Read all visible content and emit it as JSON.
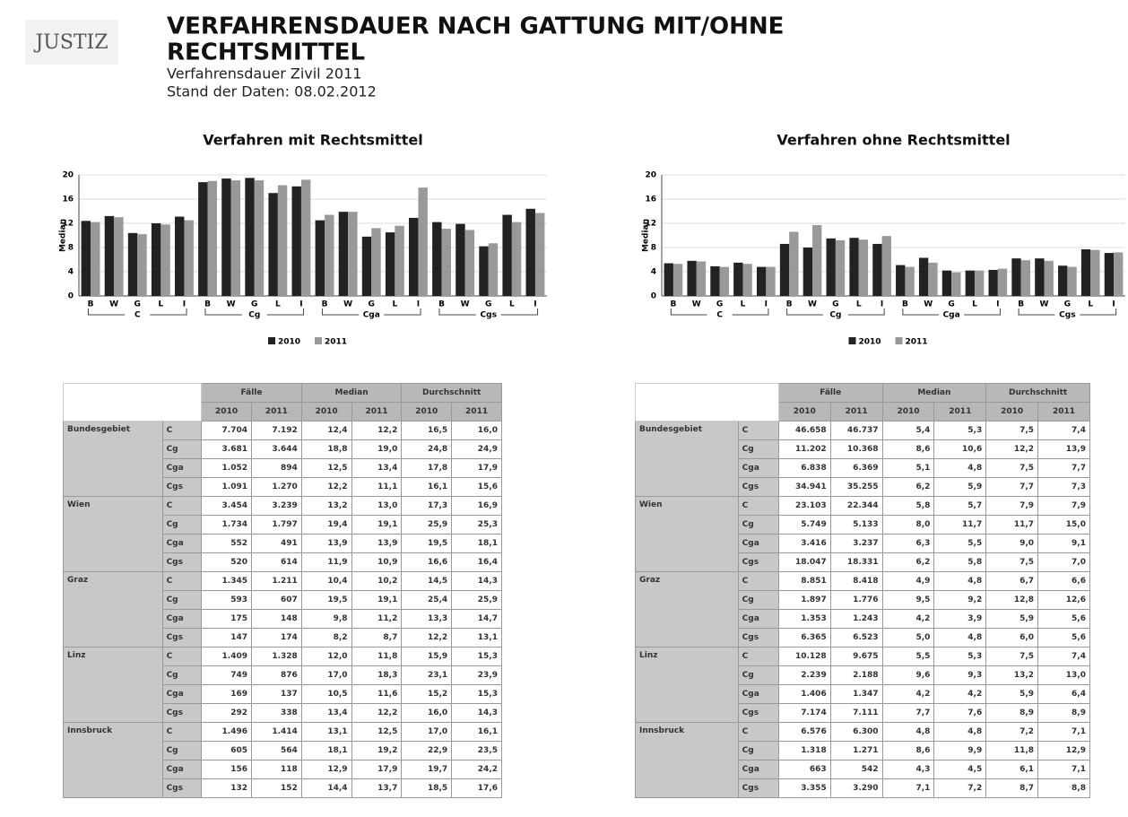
{
  "header": {
    "logo": "JUSTIZ",
    "title_line1": "VERFAHRENSDAUER NACH GATTUNG MIT/OHNE",
    "title_line2": "RECHTSMITTEL",
    "subtitle1": "Verfahrensdauer Zivil 2011",
    "subtitle2": "Stand der Daten: 08.02.2012"
  },
  "chart_data": [
    {
      "type": "bar",
      "title": "Verfahren mit Rechtsmittel",
      "y_label": "Median",
      "categories": [
        "B",
        "W",
        "G",
        "L",
        "I",
        "B",
        "W",
        "G",
        "L",
        "I",
        "B",
        "W",
        "G",
        "L",
        "I",
        "B",
        "W",
        "G",
        "L",
        "I"
      ],
      "groups": [
        "C",
        "Cg",
        "Cga",
        "Cgs"
      ],
      "series": [
        {
          "name": "2010",
          "color": "#222222",
          "values": [
            12.4,
            13.2,
            10.4,
            12.0,
            13.1,
            18.8,
            19.4,
            19.5,
            17.0,
            18.1,
            12.5,
            13.9,
            9.8,
            10.5,
            12.9,
            12.2,
            11.9,
            8.2,
            13.4,
            14.4
          ]
        },
        {
          "name": "2011",
          "color": "#999999",
          "values": [
            12.2,
            13.0,
            10.2,
            11.8,
            12.5,
            19.0,
            19.1,
            19.1,
            18.3,
            19.2,
            13.4,
            13.9,
            11.2,
            11.6,
            17.9,
            11.1,
            10.9,
            8.7,
            12.2,
            13.7
          ]
        }
      ],
      "ylim": [
        0,
        20
      ],
      "yticks": [
        0,
        4,
        8,
        12,
        16,
        20
      ],
      "grid": true
    },
    {
      "type": "bar",
      "title": "Verfahren ohne Rechtsmittel",
      "y_label": "Median",
      "categories": [
        "B",
        "W",
        "G",
        "L",
        "I",
        "B",
        "W",
        "G",
        "L",
        "I",
        "B",
        "W",
        "G",
        "L",
        "I",
        "B",
        "W",
        "G",
        "L",
        "I"
      ],
      "groups": [
        "C",
        "Cg",
        "Cga",
        "Cgs"
      ],
      "series": [
        {
          "name": "2010",
          "color": "#222222",
          "values": [
            5.4,
            5.8,
            4.9,
            5.5,
            4.8,
            8.6,
            8.0,
            9.5,
            9.6,
            8.6,
            5.1,
            6.3,
            4.2,
            4.2,
            4.3,
            6.2,
            6.2,
            5.0,
            7.7,
            7.1
          ]
        },
        {
          "name": "2011",
          "color": "#999999",
          "values": [
            5.3,
            5.7,
            4.8,
            5.3,
            4.8,
            10.6,
            11.7,
            9.2,
            9.3,
            9.9,
            4.8,
            5.5,
            3.9,
            4.2,
            4.5,
            5.9,
            5.8,
            4.8,
            7.6,
            7.2
          ]
        }
      ],
      "ylim": [
        0,
        20
      ],
      "yticks": [
        0,
        4,
        8,
        12,
        16,
        20
      ],
      "grid": true
    }
  ],
  "tables": [
    {
      "columns": [
        "Fälle",
        "Median",
        "Durchschnitt"
      ],
      "years": [
        "2010",
        "2011"
      ],
      "groups": [
        {
          "name": "Bundesgebiet",
          "rows": [
            [
              "C",
              "7.704",
              "7.192",
              "12,4",
              "12,2",
              "16,5",
              "16,0"
            ],
            [
              "Cg",
              "3.681",
              "3.644",
              "18,8",
              "19,0",
              "24,8",
              "24,9"
            ],
            [
              "Cga",
              "1.052",
              "894",
              "12,5",
              "13,4",
              "17,8",
              "17,9"
            ],
            [
              "Cgs",
              "1.091",
              "1.270",
              "12,2",
              "11,1",
              "16,1",
              "15,6"
            ]
          ]
        },
        {
          "name": "Wien",
          "rows": [
            [
              "C",
              "3.454",
              "3.239",
              "13,2",
              "13,0",
              "17,3",
              "16,9"
            ],
            [
              "Cg",
              "1.734",
              "1.797",
              "19,4",
              "19,1",
              "25,9",
              "25,3"
            ],
            [
              "Cga",
              "552",
              "491",
              "13,9",
              "13,9",
              "19,5",
              "18,1"
            ],
            [
              "Cgs",
              "520",
              "614",
              "11,9",
              "10,9",
              "16,6",
              "16,4"
            ]
          ]
        },
        {
          "name": "Graz",
          "rows": [
            [
              "C",
              "1.345",
              "1.211",
              "10,4",
              "10,2",
              "14,5",
              "14,3"
            ],
            [
              "Cg",
              "593",
              "607",
              "19,5",
              "19,1",
              "25,4",
              "25,9"
            ],
            [
              "Cga",
              "175",
              "148",
              "9,8",
              "11,2",
              "13,3",
              "14,7"
            ],
            [
              "Cgs",
              "147",
              "174",
              "8,2",
              "8,7",
              "12,2",
              "13,1"
            ]
          ]
        },
        {
          "name": "Linz",
          "rows": [
            [
              "C",
              "1.409",
              "1.328",
              "12,0",
              "11,8",
              "15,9",
              "15,3"
            ],
            [
              "Cg",
              "749",
              "876",
              "17,0",
              "18,3",
              "23,1",
              "23,9"
            ],
            [
              "Cga",
              "169",
              "137",
              "10,5",
              "11,6",
              "15,2",
              "15,3"
            ],
            [
              "Cgs",
              "292",
              "338",
              "13,4",
              "12,2",
              "16,0",
              "14,3"
            ]
          ]
        },
        {
          "name": "Innsbruck",
          "rows": [
            [
              "C",
              "1.496",
              "1.414",
              "13,1",
              "12,5",
              "17,0",
              "16,1"
            ],
            [
              "Cg",
              "605",
              "564",
              "18,1",
              "19,2",
              "22,9",
              "23,5"
            ],
            [
              "Cga",
              "156",
              "118",
              "12,9",
              "17,9",
              "19,7",
              "24,2"
            ],
            [
              "Cgs",
              "132",
              "152",
              "14,4",
              "13,7",
              "18,5",
              "17,6"
            ]
          ]
        }
      ]
    },
    {
      "columns": [
        "Fälle",
        "Median",
        "Durchschnitt"
      ],
      "years": [
        "2010",
        "2011"
      ],
      "groups": [
        {
          "name": "Bundesgebiet",
          "rows": [
            [
              "C",
              "46.658",
              "46.737",
              "5,4",
              "5,3",
              "7,5",
              "7,4"
            ],
            [
              "Cg",
              "11.202",
              "10.368",
              "8,6",
              "10,6",
              "12,2",
              "13,9"
            ],
            [
              "Cga",
              "6.838",
              "6.369",
              "5,1",
              "4,8",
              "7,5",
              "7,7"
            ],
            [
              "Cgs",
              "34.941",
              "35.255",
              "6,2",
              "5,9",
              "7,7",
              "7,3"
            ]
          ]
        },
        {
          "name": "Wien",
          "rows": [
            [
              "C",
              "23.103",
              "22.344",
              "5,8",
              "5,7",
              "7,9",
              "7,9"
            ],
            [
              "Cg",
              "5.749",
              "5.133",
              "8,0",
              "11,7",
              "11,7",
              "15,0"
            ],
            [
              "Cga",
              "3.416",
              "3.237",
              "6,3",
              "5,5",
              "9,0",
              "9,1"
            ],
            [
              "Cgs",
              "18.047",
              "18.331",
              "6,2",
              "5,8",
              "7,5",
              "7,0"
            ]
          ]
        },
        {
          "name": "Graz",
          "rows": [
            [
              "C",
              "8.851",
              "8.418",
              "4,9",
              "4,8",
              "6,7",
              "6,6"
            ],
            [
              "Cg",
              "1.897",
              "1.776",
              "9,5",
              "9,2",
              "12,8",
              "12,6"
            ],
            [
              "Cga",
              "1.353",
              "1.243",
              "4,2",
              "3,9",
              "5,9",
              "5,6"
            ],
            [
              "Cgs",
              "6.365",
              "6.523",
              "5,0",
              "4,8",
              "6,0",
              "5,6"
            ]
          ]
        },
        {
          "name": "Linz",
          "rows": [
            [
              "C",
              "10.128",
              "9.675",
              "5,5",
              "5,3",
              "7,5",
              "7,4"
            ],
            [
              "Cg",
              "2.239",
              "2.188",
              "9,6",
              "9,3",
              "13,2",
              "13,0"
            ],
            [
              "Cga",
              "1.406",
              "1.347",
              "4,2",
              "4,2",
              "5,9",
              "6,4"
            ],
            [
              "Cgs",
              "7.174",
              "7.111",
              "7,7",
              "7,6",
              "8,9",
              "8,9"
            ]
          ]
        },
        {
          "name": "Innsbruck",
          "rows": [
            [
              "C",
              "6.576",
              "6.300",
              "4,8",
              "4,8",
              "7,2",
              "7,1"
            ],
            [
              "Cg",
              "1.318",
              "1.271",
              "8,6",
              "9,9",
              "11,8",
              "12,9"
            ],
            [
              "Cga",
              "663",
              "542",
              "4,3",
              "4,5",
              "6,1",
              "7,1"
            ],
            [
              "Cgs",
              "3.355",
              "3.290",
              "7,1",
              "7,2",
              "8,7",
              "8,8"
            ]
          ]
        }
      ]
    }
  ]
}
